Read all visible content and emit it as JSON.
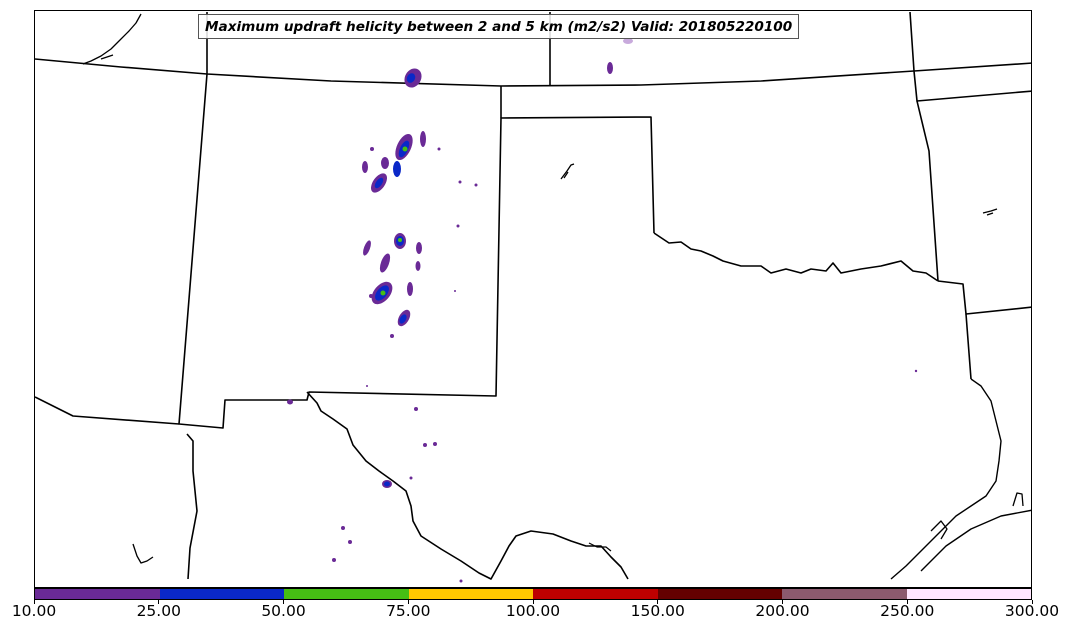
{
  "title": "Maximum updraft helicity between 2 and 5 km (m2/s2) Valid: 201805220100",
  "colorbar": {
    "labels": [
      "10.00",
      "25.00",
      "50.00",
      "75.00",
      "100.00",
      "150.00",
      "200.00",
      "250.00",
      "300.00"
    ],
    "colors": [
      "#6a2a96",
      "#0a28c8",
      "#46be14",
      "#ffc800",
      "#be0000",
      "#640000",
      "#8c5a6e",
      "#ffe6ff"
    ]
  },
  "colors": {
    "uh_10_25": "#6a2a96",
    "uh_25_50": "#0a28c8",
    "uh_50_75": "#46be14"
  }
}
